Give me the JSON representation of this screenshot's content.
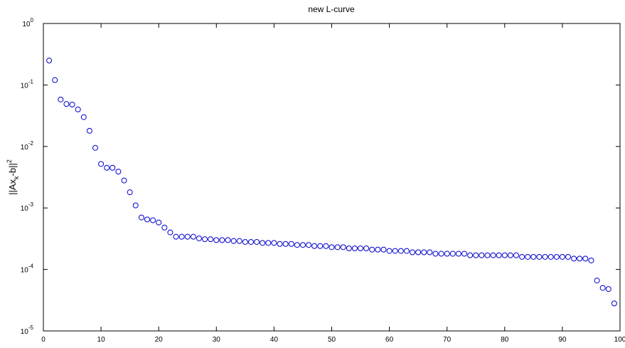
{
  "chart_data": {
    "type": "scatter",
    "title": "new L-curve",
    "ylabel": {
      "text": "||Ax",
      "subscript": "k",
      "rest": "-b||",
      "superscript": "2"
    },
    "log_y": true,
    "marker": "circle",
    "color": "#0000cc",
    "xlim": [
      0,
      100
    ],
    "xticks": [
      0,
      10,
      20,
      30,
      40,
      50,
      60,
      70,
      80,
      90,
      100
    ],
    "ylim": [
      1e-05,
      1
    ],
    "yticks": [
      {
        "value": 1,
        "label": "10",
        "exponent": "0"
      },
      {
        "value": 0.1,
        "label": "10",
        "exponent": "-1"
      },
      {
        "value": 0.01,
        "label": "10",
        "exponent": "-2"
      },
      {
        "value": 0.001,
        "label": "10",
        "exponent": "-3"
      },
      {
        "value": 0.0001,
        "label": "10",
        "exponent": "-4"
      },
      {
        "value": 1e-05,
        "label": "10",
        "exponent": "-5"
      }
    ],
    "x": [
      1,
      2,
      3,
      4,
      5,
      6,
      7,
      8,
      9,
      10,
      11,
      12,
      13,
      14,
      15,
      16,
      17,
      18,
      19,
      20,
      21,
      22,
      23,
      24,
      25,
      26,
      27,
      28,
      29,
      30,
      31,
      32,
      33,
      34,
      35,
      36,
      37,
      38,
      39,
      40,
      41,
      42,
      43,
      44,
      45,
      46,
      47,
      48,
      49,
      50,
      51,
      52,
      53,
      54,
      55,
      56,
      57,
      58,
      59,
      60,
      61,
      62,
      63,
      64,
      65,
      66,
      67,
      68,
      69,
      70,
      71,
      72,
      73,
      74,
      75,
      76,
      77,
      78,
      79,
      80,
      81,
      82,
      83,
      84,
      85,
      86,
      87,
      88,
      89,
      90,
      91,
      92,
      93,
      94,
      95,
      96,
      97,
      98,
      99
    ],
    "values": [
      0.25,
      0.12,
      0.058,
      0.049,
      0.048,
      0.04,
      0.03,
      0.018,
      0.0095,
      0.0052,
      0.0045,
      0.0045,
      0.0039,
      0.0028,
      0.0018,
      0.0011,
      0.0007,
      0.00065,
      0.00063,
      0.00058,
      0.00048,
      0.0004,
      0.00034,
      0.00034,
      0.00034,
      0.00034,
      0.00032,
      0.00031,
      0.00031,
      0.0003,
      0.0003,
      0.0003,
      0.00029,
      0.00029,
      0.00028,
      0.00028,
      0.00028,
      0.00027,
      0.00027,
      0.00027,
      0.00026,
      0.00026,
      0.00026,
      0.00025,
      0.00025,
      0.00025,
      0.00024,
      0.00024,
      0.00024,
      0.00023,
      0.00023,
      0.00023,
      0.00022,
      0.00022,
      0.00022,
      0.00022,
      0.00021,
      0.00021,
      0.00021,
      0.0002,
      0.0002,
      0.0002,
      0.0002,
      0.00019,
      0.00019,
      0.00019,
      0.00019,
      0.00018,
      0.00018,
      0.00018,
      0.00018,
      0.00018,
      0.00018,
      0.00017,
      0.00017,
      0.00017,
      0.00017,
      0.00017,
      0.00017,
      0.00017,
      0.00017,
      0.00017,
      0.00016,
      0.00016,
      0.00016,
      0.00016,
      0.00016,
      0.00016,
      0.00016,
      0.00016,
      0.00016,
      0.00015,
      0.00015,
      0.00015,
      0.00014,
      6.6e-05,
      5e-05,
      4.8e-05,
      2.8e-05
    ]
  }
}
